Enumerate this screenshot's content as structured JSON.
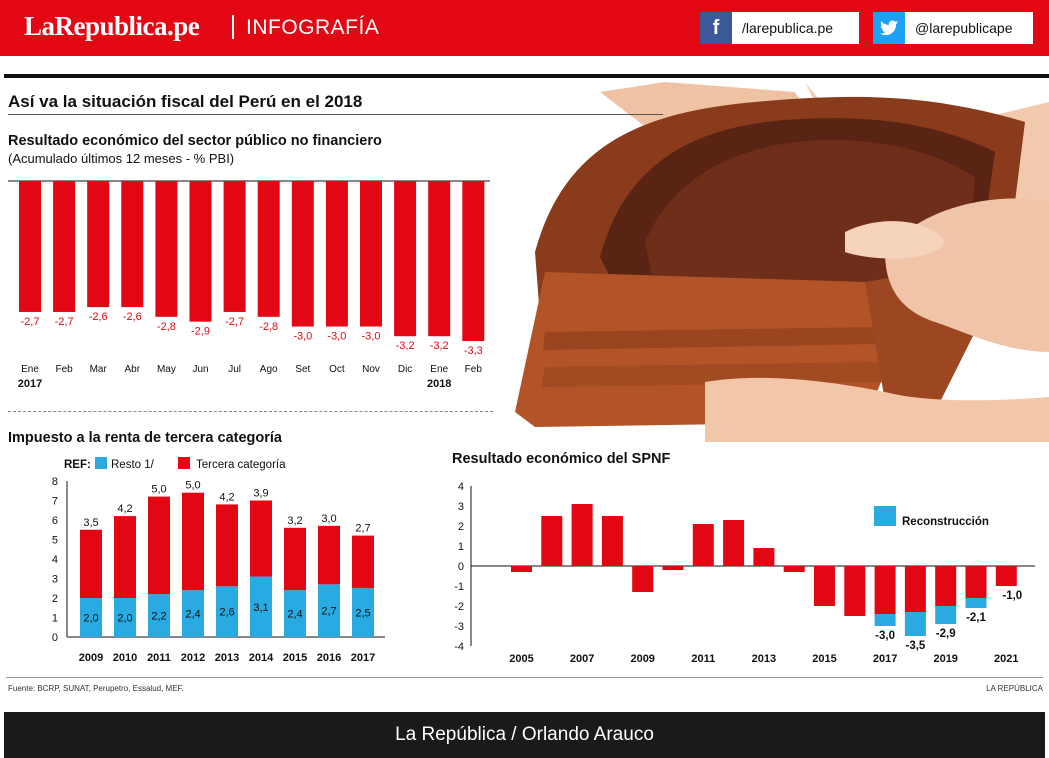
{
  "header": {
    "brand": "LaRepublica.pe",
    "section": "INFOGRAFÍA",
    "facebook": "/larepublica.pe",
    "twitter": "@larepublicape",
    "colors": {
      "red": "#e30613",
      "facebook": "#3b5998",
      "twitter": "#1da1f2"
    }
  },
  "title": "Así va la situación fiscal del Perú en el 2018",
  "icons": {
    "facebook": "facebook-icon",
    "twitter": "twitter-icon",
    "photo": "wallet-photo"
  },
  "chart1": {
    "title": "Resultado económico del sector público no financiero",
    "subtitle": "(Acumulado últimos 12 meses - % PBI)"
  },
  "chart2": {
    "title": "Impuesto a la renta de tercera categoría"
  },
  "chart3": {
    "title": "Resultado económico del SPNF"
  },
  "footer": {
    "source": "Fuente: BCRP, SUNAT, Perupetro, Essalud, MEF.",
    "credit_small": "LA REPÚBLICA",
    "credit": "La República / Orlando Arauco"
  },
  "chart_data": [
    {
      "type": "bar",
      "categories": [
        "Ene",
        "Feb",
        "Mar",
        "Abr",
        "May",
        "Jun",
        "Jul",
        "Ago",
        "Set",
        "Oct",
        "Nov",
        "Dic",
        "Ene",
        "Feb"
      ],
      "year_labels": [
        "2017",
        "2018"
      ],
      "values": [
        -2.7,
        -2.7,
        -2.6,
        -2.6,
        -2.8,
        -2.9,
        -2.7,
        -2.8,
        -3.0,
        -3.0,
        -3.0,
        -3.2,
        -3.2,
        -3.3
      ],
      "labels": [
        "-2,7",
        "-2,7",
        "-2,6",
        "-2,6",
        "-2,8",
        "-2,9",
        "-2,7",
        "-2,8",
        "-3,0",
        "-3,0",
        "-3,0",
        "-3,2",
        "-3,2",
        "-3,3"
      ],
      "color": "#e30613"
    },
    {
      "type": "bar",
      "stacked": true,
      "categories": [
        "2009",
        "2010",
        "2011",
        "2012",
        "2013",
        "2014",
        "2015",
        "2016",
        "2017"
      ],
      "legend_prefix": "REF:",
      "series": [
        {
          "name": "Resto 1/",
          "color": "#29abe2",
          "values": [
            2.0,
            2.0,
            2.2,
            2.4,
            2.6,
            3.1,
            2.4,
            2.7,
            2.5
          ],
          "labels": [
            "2,0",
            "2,0",
            "2,2",
            "2,4",
            "2,6",
            "3,1",
            "2,4",
            "2,7",
            "2,5"
          ]
        },
        {
          "name": "Tercera categoría",
          "color": "#e30613",
          "values": [
            3.5,
            4.2,
            5.0,
            5.0,
            4.2,
            3.9,
            3.2,
            3.0,
            2.7
          ],
          "labels": [
            "3,5",
            "4,2",
            "5,0",
            "5,0",
            "4,2",
            "3,9",
            "3,2",
            "3,0",
            "2,7"
          ]
        }
      ],
      "yticks": [
        "0",
        "1",
        "2",
        "3",
        "4",
        "5",
        "6",
        "7",
        "8"
      ],
      "ylim": [
        0,
        8
      ]
    },
    {
      "type": "bar",
      "x": [
        2005,
        2006,
        2007,
        2008,
        2009,
        2010,
        2011,
        2012,
        2013,
        2014,
        2015,
        2016,
        2017,
        2018,
        2019,
        2020,
        2021
      ],
      "xtick_labels": [
        "2005",
        "2007",
        "2009",
        "2011",
        "2013",
        "2015",
        "2017",
        "2019",
        "2021"
      ],
      "values": [
        -0.3,
        2.5,
        3.1,
        2.5,
        -1.3,
        -0.2,
        2.1,
        2.3,
        0.9,
        -0.3,
        -2.0,
        -2.5,
        -3.0,
        -3.5,
        -2.9,
        -2.1,
        -1.0
      ],
      "reconstruccion": [
        0,
        0,
        0,
        0,
        0,
        0,
        0,
        0,
        0,
        0,
        0,
        0,
        0.6,
        1.2,
        0.9,
        0.5,
        0
      ],
      "value_labels": {
        "2017": "-3,0",
        "2018": "-3,5",
        "2019": "-2,9",
        "2020": "-2,1",
        "2021": "-1,0"
      },
      "legend": "Reconstrucción",
      "colors": {
        "main": "#e30613",
        "reconstruccion": "#29abe2"
      },
      "yticks": [
        "4",
        "3",
        "2",
        "1",
        "0",
        "-1",
        "-2",
        "-3",
        "-4"
      ],
      "ylim": [
        -4,
        4
      ]
    }
  ]
}
